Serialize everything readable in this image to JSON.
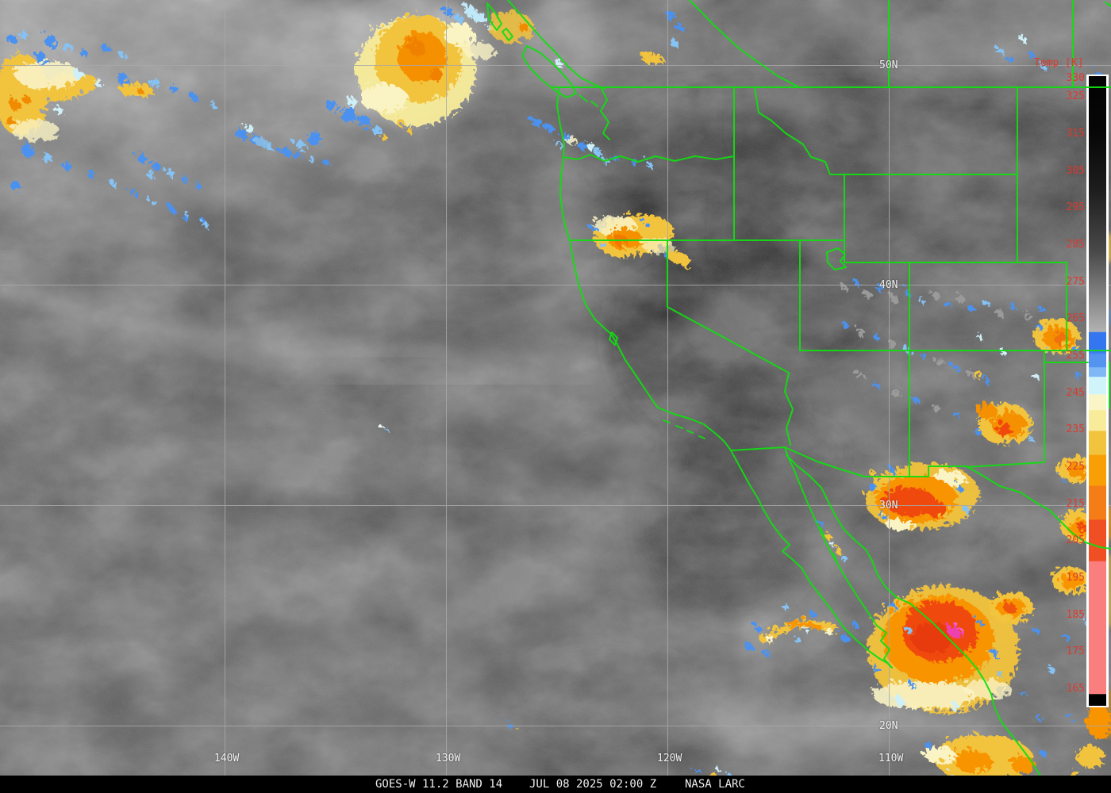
{
  "image_type": "GOES-West infrared satellite image with map overlay",
  "caption": {
    "product": "GOES-W 11.2 BAND 14",
    "datetime": "JUL 08 2025 02:00 Z",
    "credit": "NASA LARC"
  },
  "grid": {
    "latitude_labels": [
      "50N",
      "40N",
      "30N",
      "20N"
    ],
    "longitude_labels": [
      "140W",
      "130W",
      "120W",
      "110W"
    ]
  },
  "colorbar": {
    "title": "Temp [K]",
    "ticks": [
      "330",
      "325",
      "315",
      "305",
      "295",
      "285",
      "275",
      "265",
      "255",
      "245",
      "235",
      "225",
      "215",
      "205",
      "195",
      "185",
      "175",
      "165"
    ],
    "tick_color": "#dd3a2e",
    "frame_color": "#ffffff",
    "gradient_stops": [
      {
        "o": 0.0,
        "c": "#030303"
      },
      {
        "o": 0.09,
        "c": "#070707"
      },
      {
        "o": 0.18,
        "c": "#1d1d1d"
      },
      {
        "o": 0.28,
        "c": "#4a4a4a"
      },
      {
        "o": 0.406,
        "c": "#b2b2b2"
      },
      {
        "o": 0.407,
        "c": "#3376f0"
      },
      {
        "o": 0.437,
        "c": "#3376f0"
      },
      {
        "o": 0.443,
        "c": "#5593f0"
      },
      {
        "o": 0.462,
        "c": "#5593f0"
      },
      {
        "o": 0.463,
        "c": "#7fb8f5"
      },
      {
        "o": 0.477,
        "c": "#7fb8f5"
      },
      {
        "o": 0.478,
        "c": "#cff4fa"
      },
      {
        "o": 0.505,
        "c": "#cff4fa"
      },
      {
        "o": 0.506,
        "c": "#faf5c6"
      },
      {
        "o": 0.53,
        "c": "#faf5c6"
      },
      {
        "o": 0.531,
        "c": "#f8ec9a"
      },
      {
        "o": 0.563,
        "c": "#f8ec9a"
      },
      {
        "o": 0.564,
        "c": "#f2c33c"
      },
      {
        "o": 0.601,
        "c": "#f2c33c"
      },
      {
        "o": 0.602,
        "c": "#f99f06"
      },
      {
        "o": 0.65,
        "c": "#f99f06"
      },
      {
        "o": 0.651,
        "c": "#f57d18"
      },
      {
        "o": 0.704,
        "c": "#f57d18"
      },
      {
        "o": 0.705,
        "c": "#f04f24"
      },
      {
        "o": 0.77,
        "c": "#f04f24"
      },
      {
        "o": 0.771,
        "c": "#fa7e7e"
      },
      {
        "o": 0.981,
        "c": "#fa7e7e"
      },
      {
        "o": 0.982,
        "c": "#000000"
      },
      {
        "o": 1.0,
        "c": "#000000"
      }
    ]
  },
  "colors": {
    "border_green": "#12dd12",
    "gridline_gray": "#a9a9a9",
    "label_white": "#f2f2f2",
    "caption_bg": "#000000",
    "caption_text": "#f0f0f0",
    "ocean_gray": "#515151"
  },
  "palette": {
    "blue": "#4b92f0",
    "light_blue": "#85c2f5",
    "pale_cyan": "#cff0f8",
    "cream": "#faf3c4",
    "pale_yellow": "#f8ec9a",
    "gold": "#f2c33c",
    "orange": "#f89400",
    "deep_orange": "#f57d18",
    "red_orange": "#f04a10",
    "salmon": "#fa7e7e",
    "magenta": "#ee3fb0"
  }
}
